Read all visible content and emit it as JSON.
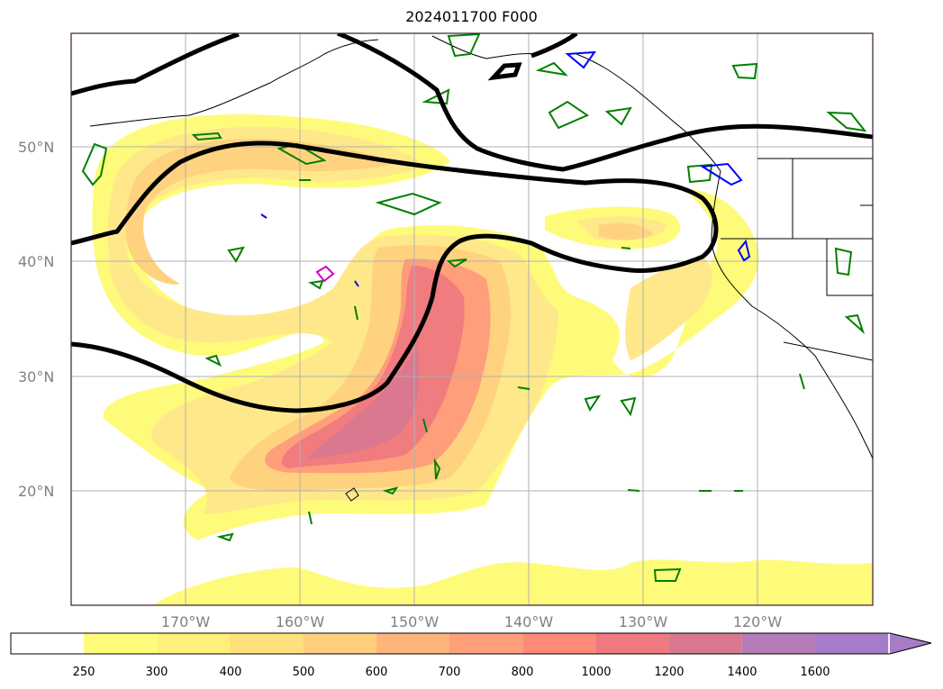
{
  "title": "2024011700 F000",
  "map": {
    "lat_labels": [
      "50°N",
      "40°N",
      "30°N",
      "20°N"
    ],
    "lon_labels": [
      "170°W",
      "160°W",
      "150°W",
      "140°W",
      "130°W",
      "120°W"
    ],
    "extent": {
      "lon_min": -180,
      "lon_max": -110,
      "lat_min": 10,
      "lat_max": 60
    },
    "gridlines": true
  },
  "colorbar": {
    "levels": [
      "250",
      "300",
      "400",
      "500",
      "600",
      "700",
      "800",
      "1000",
      "1200",
      "1400",
      "1600"
    ],
    "colors": [
      "#ffffff",
      "#fffb7a",
      "#fff07a",
      "#ffe07d",
      "#ffcf7d",
      "#ffb47a",
      "#ffa07a",
      "#ff8a7a",
      "#f07880",
      "#d8788f",
      "#b67cb8",
      "#a67cc8"
    ],
    "extend": "max"
  },
  "legend_colors": {
    "jet_contour": "#000000",
    "green_contour": "#008000",
    "blue_contour": "#0000ff",
    "magenta_contour": "#cc00cc"
  }
}
